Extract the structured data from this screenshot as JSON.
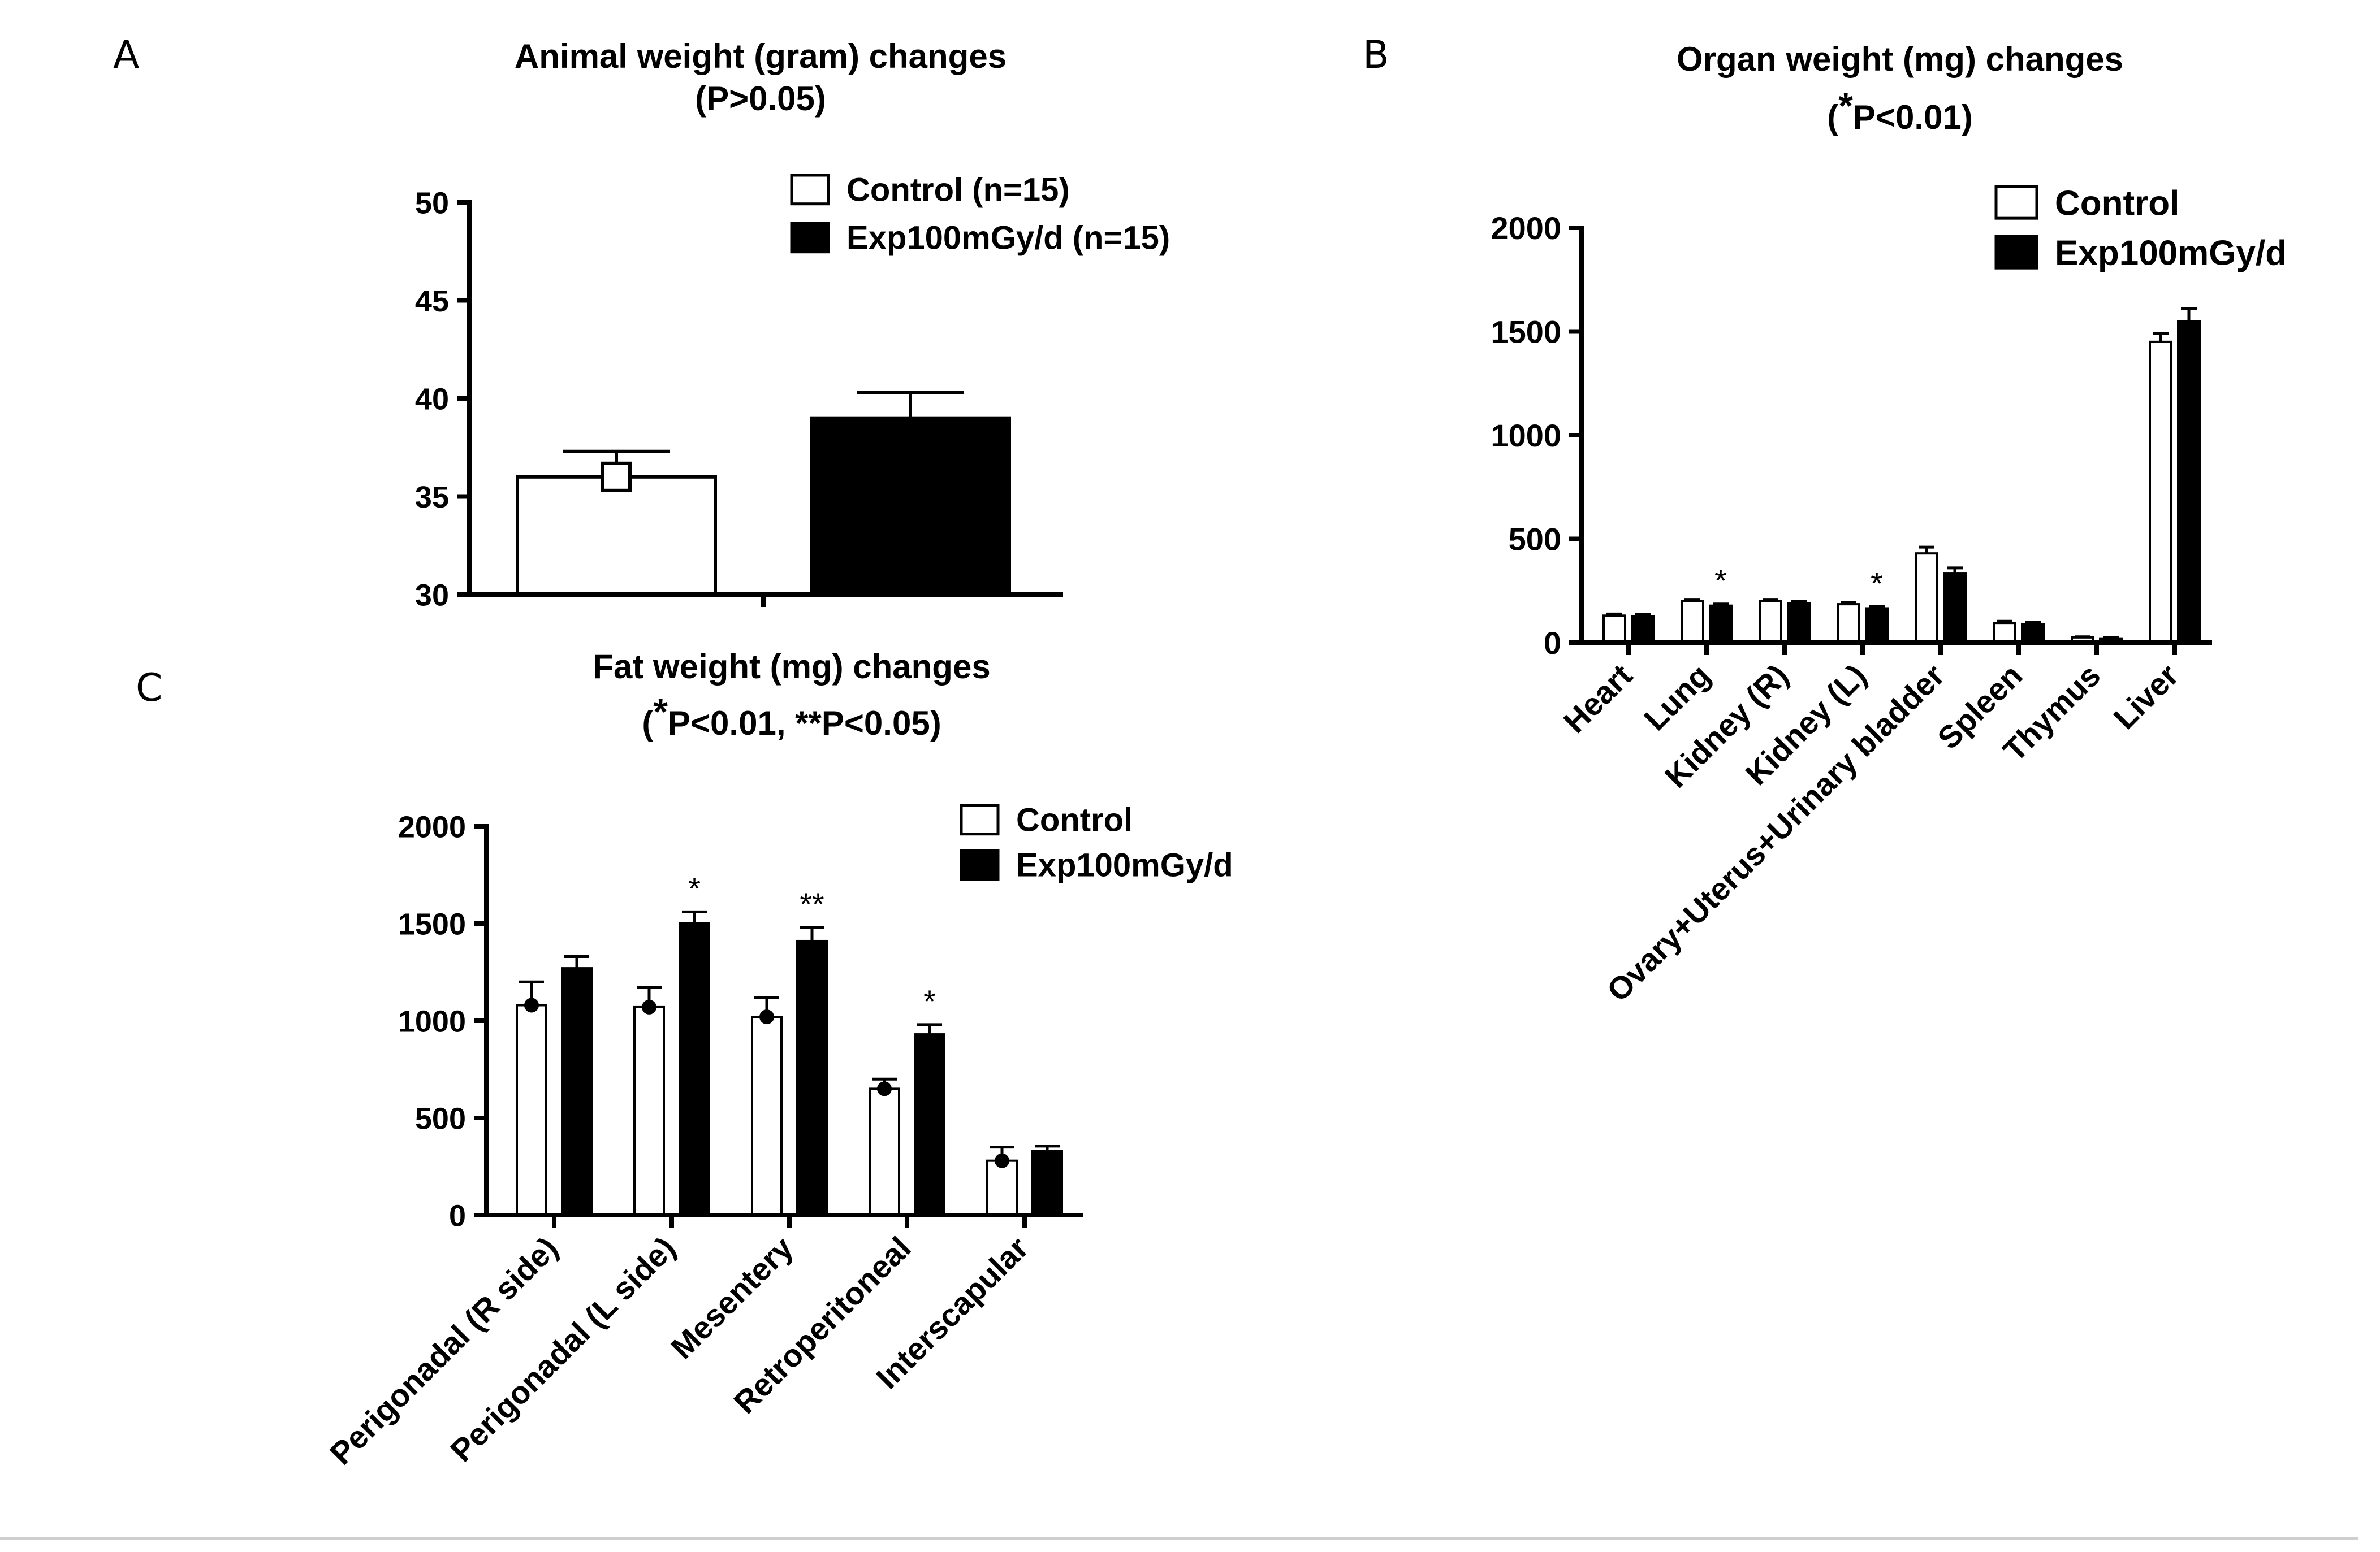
{
  "chart_data": [
    {
      "panel": "A",
      "type": "bar",
      "title": "Animal weight (gram) changes",
      "subtitle": "(P>0.05)",
      "xlabel": "",
      "ylabel": "",
      "ylim": [
        30,
        50
      ],
      "yticks": [
        30,
        35,
        40,
        45,
        50
      ],
      "categories": [
        ""
      ],
      "legend_position": "top-right",
      "series": [
        {
          "name": "Control (n=15)",
          "fill": "#ffffff",
          "values": [
            36.0
          ],
          "errors": [
            1.3
          ],
          "marker": "square"
        },
        {
          "name": "Exp100mGy/d (n=15)",
          "fill": "#000000",
          "values": [
            39.0
          ],
          "errors": [
            1.3
          ]
        }
      ],
      "annotations": []
    },
    {
      "panel": "B",
      "type": "bar",
      "title": "Organ weight (mg) changes",
      "subtitle_star": "*",
      "subtitle": "P<0.01)",
      "subtitle_open": "(",
      "xlabel": "",
      "ylabel": "",
      "ylim": [
        0,
        2000
      ],
      "yticks": [
        0,
        500,
        1000,
        1500,
        2000
      ],
      "categories": [
        "Heart",
        "Lung",
        "Kidney (R)",
        "Kidney (L)",
        "Ovary+Uterus+Urinary bladder",
        "Spleen",
        "Thymus",
        "Liver"
      ],
      "legend_position": "top-right",
      "series": [
        {
          "name": "Control",
          "fill": "#ffffff",
          "values": [
            130,
            200,
            200,
            185,
            430,
            95,
            25,
            1450
          ],
          "errors": [
            8,
            8,
            8,
            8,
            30,
            8,
            3,
            40
          ]
        },
        {
          "name": "Exp100mGy/d",
          "fill": "#000000",
          "values": [
            128,
            178,
            190,
            165,
            335,
            90,
            20,
            1550
          ],
          "errors": [
            8,
            8,
            8,
            8,
            25,
            8,
            3,
            60
          ]
        }
      ],
      "annotations": [
        {
          "category": 1,
          "series": 1,
          "text": "*"
        },
        {
          "category": 3,
          "series": 1,
          "text": "*"
        }
      ]
    },
    {
      "panel": "C",
      "type": "bar",
      "title": "Fat weight (mg) changes",
      "subtitle_open": "(",
      "subtitle_star": "*",
      "subtitle": "P<0.01,  **P<0.05)",
      "xlabel": "",
      "ylabel": "",
      "ylim": [
        0,
        2000
      ],
      "yticks": [
        0,
        500,
        1000,
        1500,
        2000
      ],
      "categories": [
        "Perigonadal (R side)",
        "Perigonadal (L side)",
        "Mesentery",
        "Retroperitoneal",
        "Interscapular"
      ],
      "legend_position": "top-right",
      "series": [
        {
          "name": "Control",
          "fill": "#ffffff",
          "values": [
            1080,
            1070,
            1020,
            650,
            280
          ],
          "errors": [
            120,
            100,
            100,
            50,
            70
          ],
          "marker": "circle"
        },
        {
          "name": "Exp100mGy/d",
          "fill": "#000000",
          "values": [
            1270,
            1500,
            1410,
            930,
            330
          ],
          "errors": [
            60,
            60,
            70,
            50,
            25
          ]
        }
      ],
      "annotations": [
        {
          "category": 1,
          "series": 1,
          "text": "*"
        },
        {
          "category": 2,
          "series": 1,
          "text": "**"
        },
        {
          "category": 3,
          "series": 1,
          "text": "*"
        }
      ]
    }
  ]
}
